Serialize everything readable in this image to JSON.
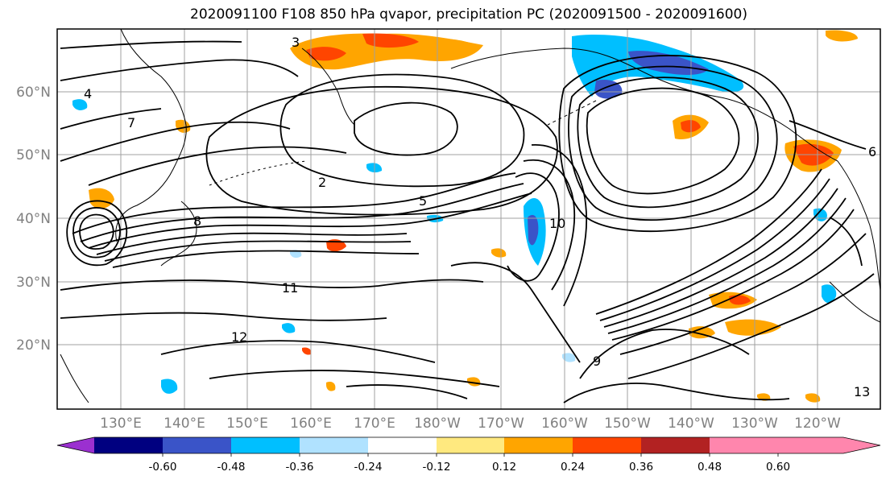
{
  "title": "2020091100 F108 850 hPa qvapor, precipitation PC (2020091500 - 2020091600)",
  "lat_labels": [
    "60°N",
    "50°N",
    "40°N",
    "30°N",
    "20°N"
  ],
  "lon_labels": [
    "130°E",
    "140°E",
    "150°E",
    "160°E",
    "170°E",
    "180°W",
    "170°W",
    "160°W",
    "150°W",
    "140°W",
    "130°W",
    "120°W"
  ],
  "colorbar": {
    "colors": [
      "#9b30d0",
      "#000080",
      "#3a54c8",
      "#00bfff",
      "#b0e2ff",
      "#ffffff",
      "#ffe97f",
      "#ffa500",
      "#ff4500",
      "#b22222",
      "#ff86ad"
    ],
    "ticks": [
      "-0.60",
      "-0.48",
      "-0.36",
      "-0.24",
      "-0.12",
      "0.12",
      "0.24",
      "0.36",
      "0.48",
      "0.60"
    ]
  },
  "contour_labels": [
    "3",
    "4",
    "2",
    "5",
    "6",
    "7",
    "8",
    "9",
    "10",
    "11",
    "12",
    "13"
  ]
}
